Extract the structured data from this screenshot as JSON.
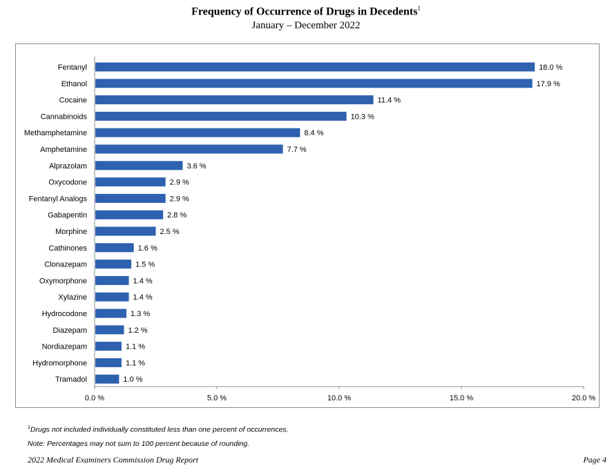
{
  "header": {
    "title": "Frequency of Occurrence of Drugs in Decedents",
    "title_sup": "1",
    "subtitle": "January – December 2022"
  },
  "chart_data": {
    "type": "bar",
    "orientation": "horizontal",
    "categories": [
      "Fentanyl",
      "Ethanol",
      "Cocaine",
      "Cannabinoids",
      "Methamphetamine",
      "Amphetamine",
      "Alprazolam",
      "Oxycodone",
      "Fentanyl Analogs",
      "Gabapentin",
      "Morphine",
      "Cathinones",
      "Clonazepam",
      "Oxymorphone",
      "Xylazine",
      "Hydrocodone",
      "Diazepam",
      "Nordiazepam",
      "Hydromorphone",
      "Tramadol"
    ],
    "values": [
      18.0,
      17.9,
      11.4,
      10.3,
      8.4,
      7.7,
      3.6,
      2.9,
      2.9,
      2.8,
      2.5,
      1.6,
      1.5,
      1.4,
      1.4,
      1.3,
      1.2,
      1.1,
      1.1,
      1.0
    ],
    "value_labels": [
      "18.0 %",
      "17.9 %",
      "11.4 %",
      "10.3 %",
      "8.4 %",
      "7.7 %",
      "3.6 %",
      "2.9 %",
      "2.9 %",
      "2.8 %",
      "2.5 %",
      "1.6 %",
      "1.5 %",
      "1.4 %",
      "1.4 %",
      "1.3 %",
      "1.2 %",
      "1.1 %",
      "1.1 %",
      "1.0 %"
    ],
    "xlim": [
      0,
      20
    ],
    "x_ticks": [
      0,
      5,
      10,
      15,
      20
    ],
    "x_tick_labels": [
      "0.0 %",
      "5.0 %",
      "10.0 %",
      "15.0 %",
      "20.0 %"
    ],
    "bar_color": "#2e62b0",
    "grid": false
  },
  "footnotes": {
    "note1_sup": "1",
    "note1": "Drugs not included individually constituted less than one percent of occurrences.",
    "note2": "Note: Percentages may not sum to 100 percent because of rounding."
  },
  "footer": {
    "left": "2022 Medical Examiners Commission Drug Report",
    "right": "Page 4"
  }
}
